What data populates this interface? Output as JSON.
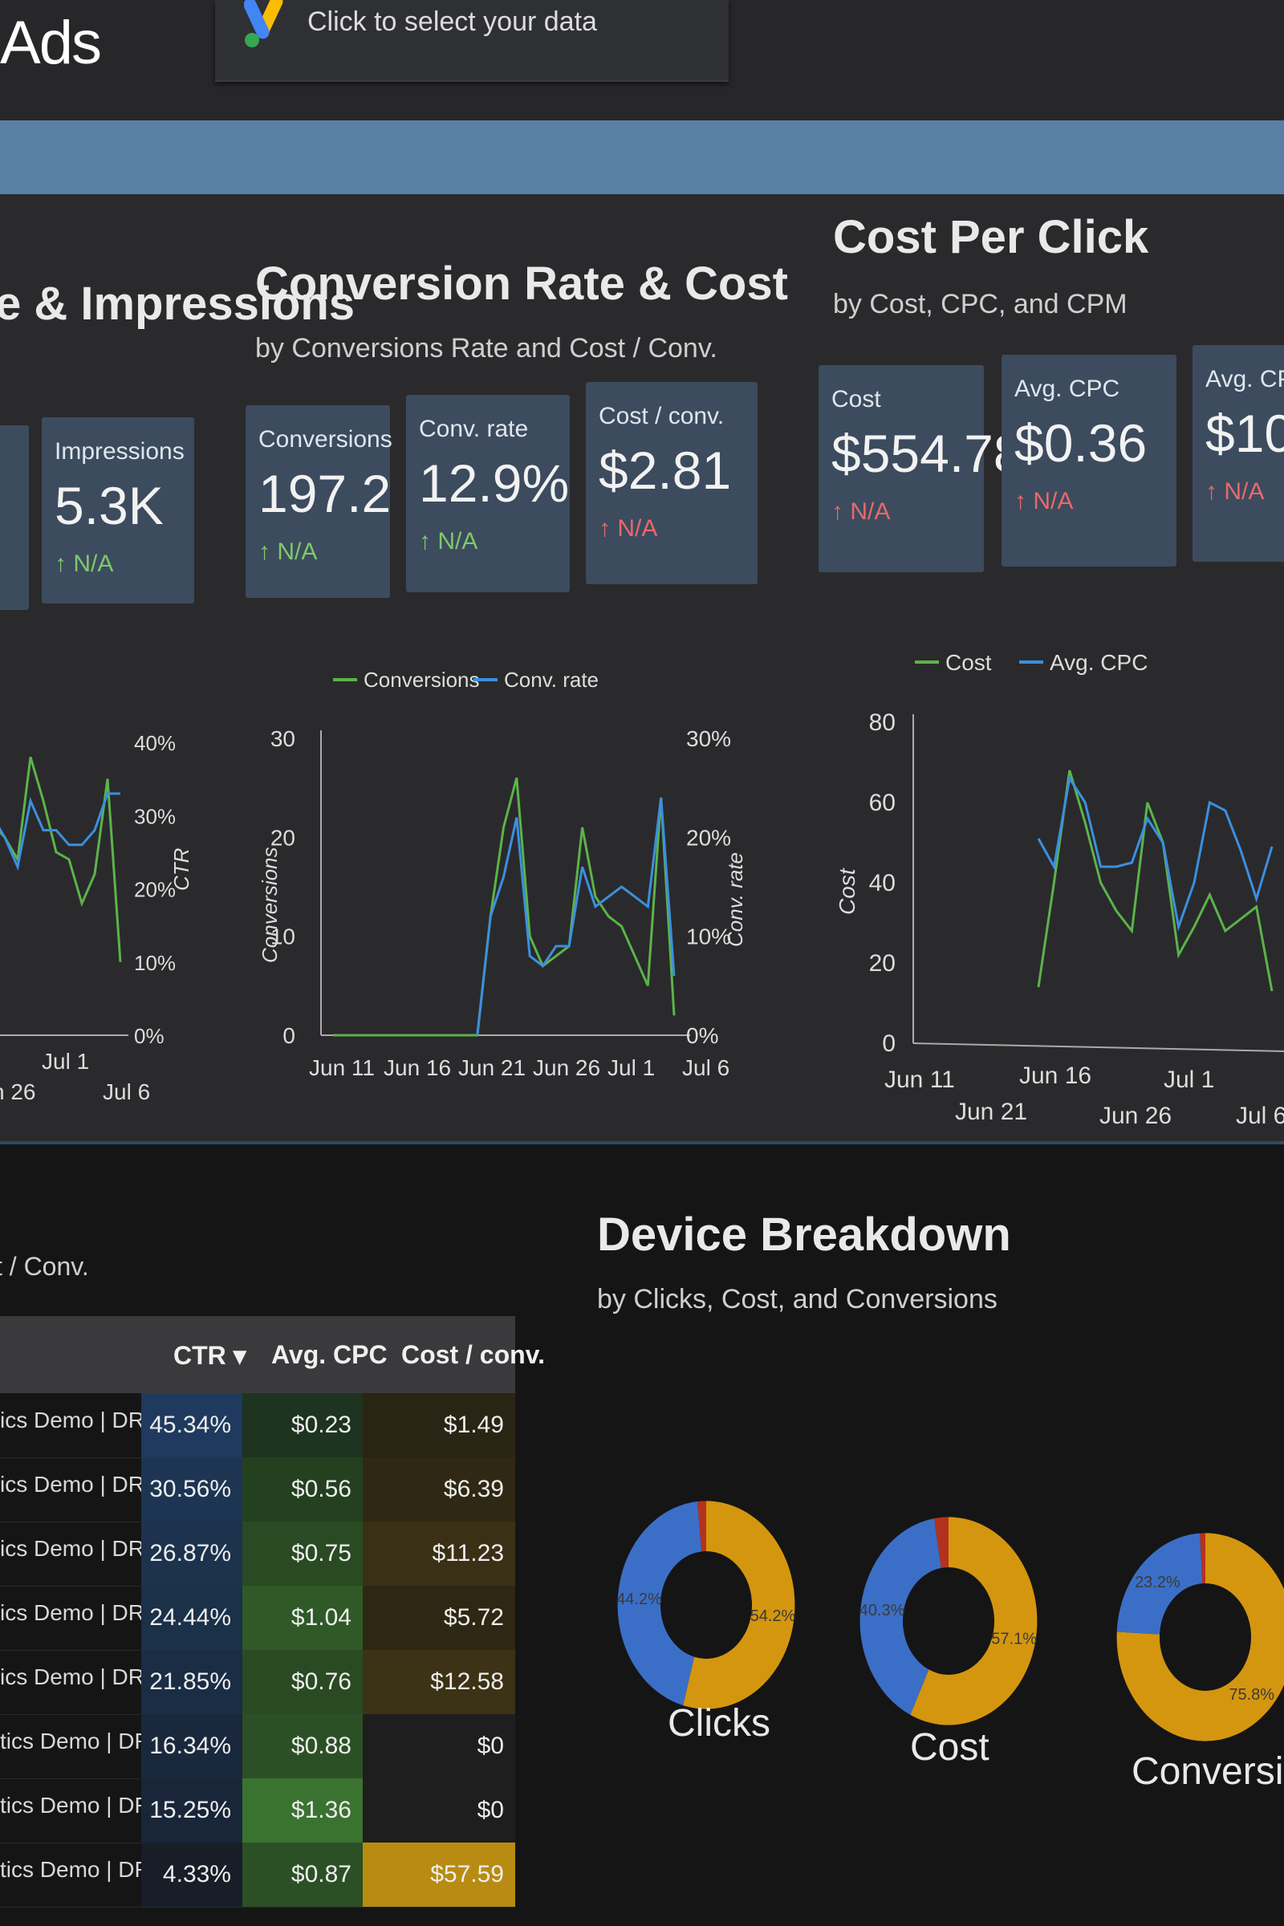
{
  "app": {
    "title": "Ads",
    "data_selector": "Click to select your data"
  },
  "sections": {
    "impressions": {
      "title": "e & Impressions"
    },
    "conversion": {
      "title": "Conversion Rate & Cost",
      "subtitle": "by Conversions Rate and Cost / Conv."
    },
    "cpc": {
      "title": "Cost Per Click",
      "subtitle": "by Cost, CPC, and CPM"
    }
  },
  "scorecards": {
    "impressions": {
      "label": "Impressions",
      "value": "5.3K",
      "delta": "N/A",
      "delta_color": "#7fc96a"
    },
    "conversions": {
      "label": "Conversions",
      "value": "197.2",
      "delta": "N/A",
      "delta_color": "#7fc96a"
    },
    "conv_rate": {
      "label": "Conv. rate",
      "value": "12.9%",
      "delta": "N/A",
      "delta_color": "#7fc96a"
    },
    "cost_conv": {
      "label": "Cost / conv.",
      "value": "$2.81",
      "delta": "N/A",
      "delta_color": "#e76a6a"
    },
    "cost": {
      "label": "Cost",
      "value": "$554.78",
      "delta": "N/A",
      "delta_color": "#e76a6a"
    },
    "avg_cpc": {
      "label": "Avg. CPC",
      "value": "$0.36",
      "delta": "N/A",
      "delta_color": "#e76a6a"
    },
    "avg_cpm": {
      "label": "Avg. CP",
      "value": "$10",
      "delta": "N/A",
      "delta_color": "#e76a6a"
    }
  },
  "colors": {
    "green_series": "#5cb34a",
    "blue_series": "#3b8fe0",
    "up": "#7fc96a",
    "down": "#e76a6a",
    "band": "#5a7fa5"
  },
  "chart_data": [
    {
      "type": "line",
      "ylabel_right": "CTR",
      "y_right_ticks": [
        "40%",
        "30%",
        "20%",
        "10%",
        "0%"
      ],
      "x_ticks": [
        "n 26",
        "Jul 1",
        "Jul 6"
      ],
      "series": [
        {
          "name": "Green",
          "values": [
            0.29,
            0.27,
            0.24,
            0.38,
            0.32,
            0.25,
            0.24,
            0.18,
            0.22,
            0.35,
            0.1
          ]
        },
        {
          "name": "Blue",
          "values": [
            0.3,
            0.27,
            0.23,
            0.32,
            0.28,
            0.28,
            0.26,
            0.26,
            0.28,
            0.33,
            0.33
          ]
        }
      ]
    },
    {
      "type": "line",
      "legend": [
        "Conversions",
        "Conv. rate"
      ],
      "ylabel": "Conversions",
      "ylabel_right": "Conv. rate",
      "y_ticks": [
        "30",
        "20",
        "10",
        "0"
      ],
      "y_right_ticks": [
        "30%",
        "20%",
        "10%",
        "0%"
      ],
      "x_ticks": [
        "Jun 11",
        "Jun 16",
        "Jun 21",
        "Jun 26",
        "Jul 1",
        "Jul 6"
      ],
      "ylim": [
        0,
        30
      ],
      "series": [
        {
          "name": "Conversions",
          "values": [
            0,
            0,
            0,
            0,
            0,
            0,
            0,
            0,
            0,
            0,
            0,
            0,
            12,
            21,
            26,
            10,
            7,
            8,
            9,
            21,
            14,
            12,
            11,
            8,
            5,
            24,
            2
          ]
        },
        {
          "name": "Conv. rate",
          "values": [
            null,
            null,
            null,
            null,
            null,
            null,
            null,
            null,
            null,
            null,
            null,
            0,
            12,
            16,
            22,
            8,
            7,
            9,
            9,
            17,
            13,
            14,
            15,
            14,
            13,
            24,
            6
          ]
        }
      ]
    },
    {
      "type": "line",
      "legend": [
        "Cost",
        "Avg. CPC"
      ],
      "ylabel": "Cost",
      "y_ticks": [
        "80",
        "60",
        "40",
        "20",
        "0"
      ],
      "x_ticks": [
        "Jun 11",
        "Jun 16",
        "Jun 21",
        "Jun 26",
        "Jul 1",
        "Jul 6"
      ],
      "ylim": [
        0,
        80
      ],
      "series": [
        {
          "name": "Cost",
          "values": [
            null,
            null,
            null,
            null,
            null,
            null,
            null,
            null,
            null,
            null,
            14,
            40,
            68,
            55,
            40,
            33,
            28,
            60,
            50,
            22,
            29,
            37,
            28,
            31,
            34,
            13
          ]
        },
        {
          "name": "Avg. CPC",
          "values": [
            null,
            null,
            null,
            null,
            null,
            null,
            null,
            null,
            null,
            null,
            51,
            44,
            66,
            60,
            44,
            44,
            45,
            56,
            50,
            29,
            40,
            60,
            58,
            48,
            36,
            49
          ]
        }
      ]
    },
    {
      "type": "pie",
      "title": "Device Breakdown",
      "subtitle": "by Clicks, Cost, and Conversions",
      "charts": [
        {
          "label": "Clicks",
          "slices": [
            {
              "value": 54.2,
              "color": "#d4960f",
              "text": "54.2%"
            },
            {
              "value": 44.2,
              "color": "#3b6fc7",
              "text": "44.2%"
            },
            {
              "value": 1.6,
              "color": "#b3321f",
              "text": ""
            }
          ]
        },
        {
          "label": "Cost",
          "slices": [
            {
              "value": 57.1,
              "color": "#d4960f",
              "text": "57.1%"
            },
            {
              "value": 40.3,
              "color": "#3b6fc7",
              "text": "40.3%"
            },
            {
              "value": 2.6,
              "color": "#b3321f",
              "text": ""
            }
          ]
        },
        {
          "label": "Conversions",
          "slices": [
            {
              "value": 75.8,
              "color": "#d4960f",
              "text": "75.8%"
            },
            {
              "value": 23.2,
              "color": "#3b6fc7",
              "text": "23.2%"
            },
            {
              "value": 1.0,
              "color": "#b3321f",
              "text": ""
            }
          ]
        }
      ]
    }
  ],
  "table": {
    "subtitle": "t / Conv.",
    "headers": {
      "ctr": "CTR ▾",
      "avg_cpc": "Avg. CPC",
      "cost_conv": "Cost / conv."
    },
    "rows": [
      {
        "name": "ics Demo | DR | ma...",
        "ctr": "45.34%",
        "avg_cpc": "$0.23",
        "cost_conv": "$1.49",
        "ctr_bg": "#1f3a5e",
        "cpc_bg": "#1e3320",
        "cost_bg": "#2a2414"
      },
      {
        "name": "ics Demo | DR | ma...",
        "ctr": "30.56%",
        "avg_cpc": "$0.56",
        "cost_conv": "$6.39",
        "ctr_bg": "#1d3553",
        "cpc_bg": "#23401f",
        "cost_bg": "#2f2814"
      },
      {
        "name": "ics Demo | DR | ma...",
        "ctr": "26.87%",
        "avg_cpc": "$0.75",
        "cost_conv": "$11.23",
        "ctr_bg": "#1c324d",
        "cpc_bg": "#294a23",
        "cost_bg": "#3a3015"
      },
      {
        "name": "ics Demo | DR | ma...",
        "ctr": "24.44%",
        "avg_cpc": "$1.04",
        "cost_conv": "$5.72",
        "ctr_bg": "#1b3049",
        "cpc_bg": "#2f5a27",
        "cost_bg": "#2e2714"
      },
      {
        "name": "ics Demo | DR | ma...",
        "ctr": "21.85%",
        "avg_cpc": "$0.76",
        "cost_conv": "$12.58",
        "ctr_bg": "#1a2d44",
        "cpc_bg": "#294a23",
        "cost_bg": "#3c3215"
      },
      {
        "name": "tics Demo | DR | ma...",
        "ctr": "16.34%",
        "avg_cpc": "$0.88",
        "cost_conv": "$0",
        "ctr_bg": "#19283c",
        "cpc_bg": "#2c5025",
        "cost_bg": "#1e1e1e"
      },
      {
        "name": "tics Demo | DR | ma...",
        "ctr": "15.25%",
        "avg_cpc": "$1.36",
        "cost_conv": "$0",
        "ctr_bg": "#19263a",
        "cpc_bg": "#3a7230",
        "cost_bg": "#1e1e1e"
      },
      {
        "name": "tics Demo | DR | ma...",
        "ctr": "4.33%",
        "avg_cpc": "$0.87",
        "cost_conv": "$57.59",
        "ctr_bg": "#171e28",
        "cpc_bg": "#2c5025",
        "cost_bg": "#b88c12"
      }
    ]
  }
}
